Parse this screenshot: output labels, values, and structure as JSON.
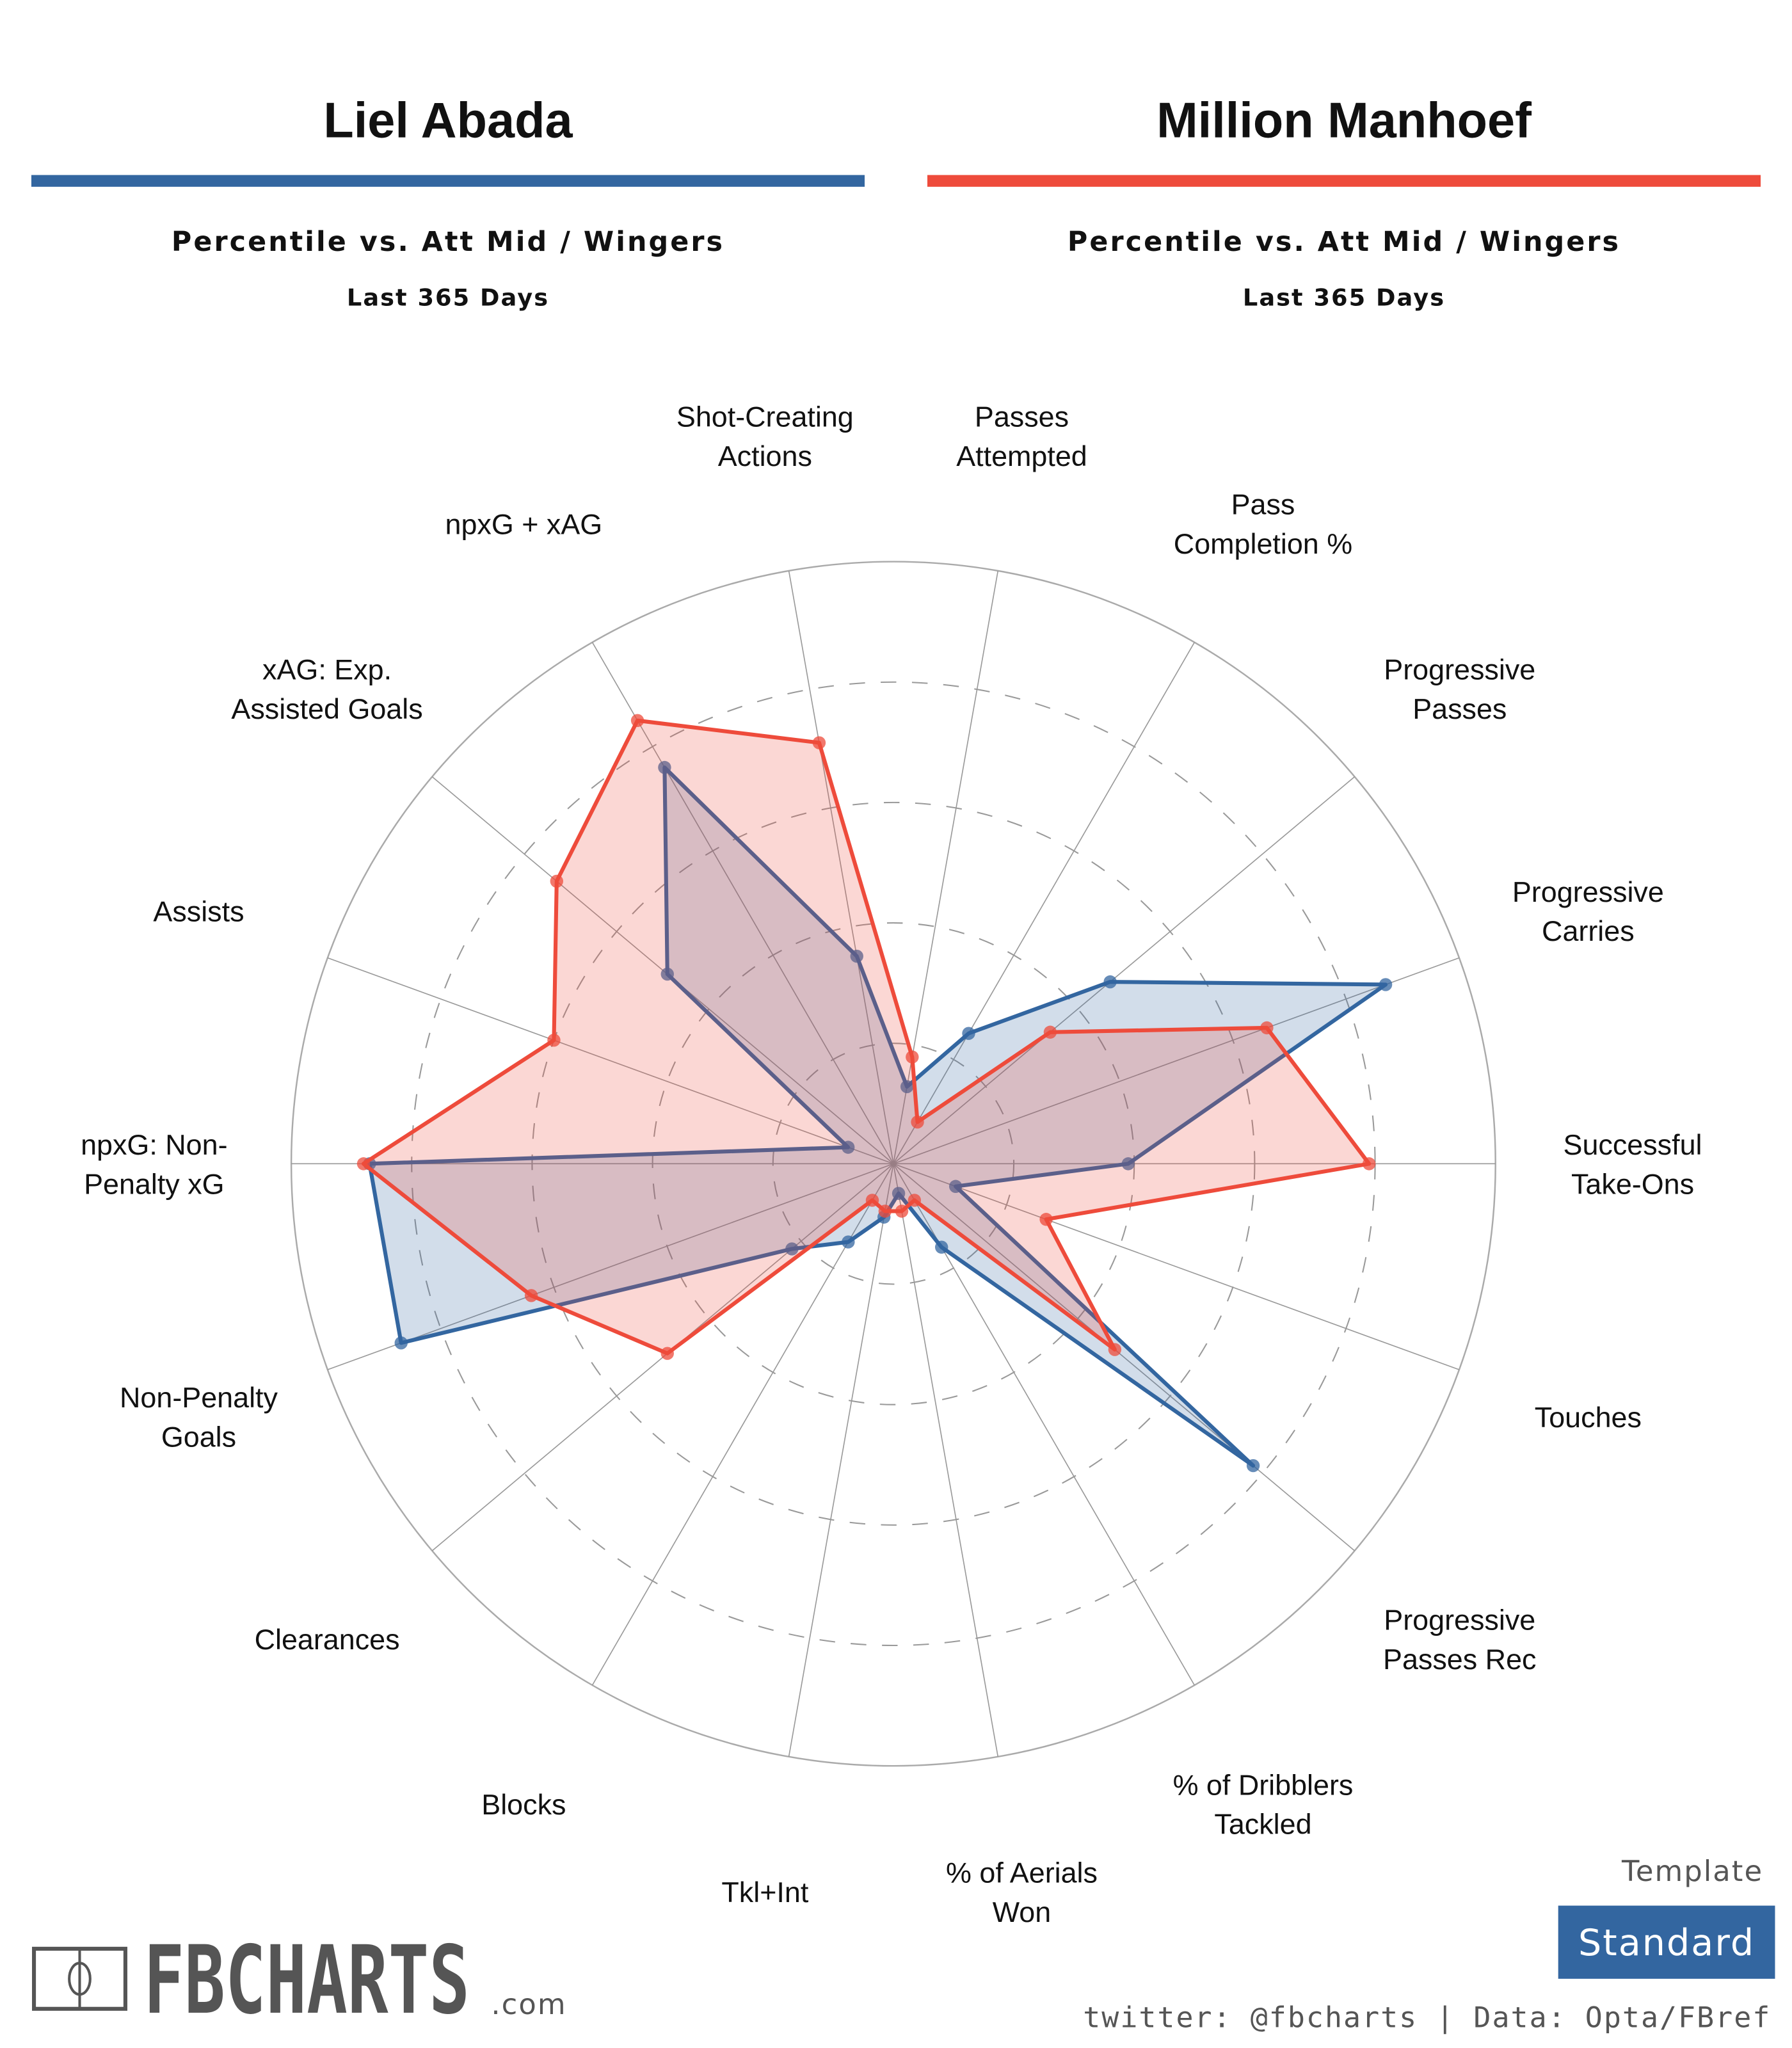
{
  "players": [
    {
      "name": "Liel Abada",
      "color": "#3366a0",
      "subtitle": "Percentile vs. Att Mid / Wingers",
      "period": "Last 365 Days"
    },
    {
      "name": "Million Manhoef",
      "color": "#ee4b3b",
      "subtitle": "Percentile vs. Att Mid / Wingers",
      "period": "Last 365 Days"
    }
  ],
  "chart_data": {
    "type": "radar",
    "rlim": [
      0,
      100
    ],
    "grid": true,
    "categories": [
      "Passes\nAttempted",
      "Pass\nCompletion %",
      "Progressive\nPasses",
      "Progressive\nCarries",
      "Successful\nTake-Ons",
      "Touches",
      "Progressive\nPasses Rec",
      "% of Dribblers\nTackled",
      "% of Aerials\nWon",
      "Tkl+Int",
      "Blocks",
      "Clearances",
      "Non-Penalty\nGoals",
      "npxG: Non-\nPenalty xG",
      "Assists",
      "xAG: Exp.\nAssisted Goals",
      "npxG + xAG",
      "Shot-Creating\nActions"
    ],
    "series": [
      {
        "name": "Liel Abada",
        "color": "#3366a0",
        "values": [
          13,
          25,
          47,
          87,
          39,
          11,
          78,
          16,
          5,
          9,
          15,
          22,
          87,
          87,
          8,
          49,
          76,
          35
        ]
      },
      {
        "name": "Million Manhoef",
        "color": "#ee4b3b",
        "values": [
          18,
          8,
          34,
          66,
          79,
          27,
          48,
          7,
          8,
          8,
          7,
          49,
          64,
          88,
          60,
          73,
          85,
          71
        ]
      }
    ]
  },
  "footer": {
    "logo": "FBCHARTS",
    "logo_suffix": ".com",
    "credit": "twitter: @fbcharts | Data: Opta/FBref",
    "template_label": "Template",
    "template_value": "Standard"
  }
}
